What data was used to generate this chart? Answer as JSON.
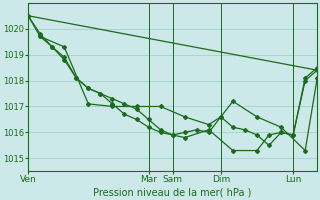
{
  "bg_color": "#cce8e8",
  "grid_color": "#99cccc",
  "line_color": "#1a6b1a",
  "xlabel": "Pression niveau de la mer( hPa )",
  "ylim": [
    1014.5,
    1021.0
  ],
  "yticks": [
    1015,
    1016,
    1017,
    1018,
    1019,
    1020
  ],
  "xtick_labels": [
    "Ven",
    "Mar",
    "Sam",
    "Dim",
    "Lun"
  ],
  "xtick_positions": [
    0,
    5,
    6,
    8,
    11
  ],
  "xlim": [
    0,
    12
  ],
  "series1_straight": {
    "x": [
      0,
      12
    ],
    "y": [
      1020.5,
      1018.4
    ]
  },
  "series2": {
    "x": [
      0,
      0.5,
      1.5,
      2.5,
      3.5,
      4.5,
      5.5,
      6.5,
      7.5,
      8.0,
      8.5,
      9.5,
      10.5,
      11.5,
      12
    ],
    "y": [
      1020.5,
      1019.7,
      1019.3,
      1017.1,
      1017.0,
      1017.0,
      1017.0,
      1016.6,
      1016.3,
      1016.6,
      1017.2,
      1016.6,
      1016.2,
      1015.3,
      1018.1
    ]
  },
  "series3": {
    "x": [
      0,
      0.5,
      1.0,
      1.5,
      2.0,
      2.5,
      3.0,
      3.5,
      4.0,
      4.5,
      5.0,
      5.5,
      6.0,
      6.5,
      7.0,
      7.5,
      8.0,
      8.5,
      9.0,
      9.5,
      10.0,
      10.5,
      11.0,
      11.5,
      12.0
    ],
    "y": [
      1020.5,
      1019.8,
      1019.3,
      1018.9,
      1018.1,
      1017.7,
      1017.5,
      1017.1,
      1016.7,
      1016.5,
      1016.2,
      1016.0,
      1015.9,
      1016.0,
      1016.1,
      1016.0,
      1016.6,
      1016.2,
      1016.1,
      1015.9,
      1015.5,
      1016.0,
      1015.9,
      1018.1,
      1018.5
    ]
  },
  "series4": {
    "x": [
      0.5,
      1.0,
      1.5,
      2.0,
      2.5,
      3.0,
      3.5,
      4.0,
      4.5,
      5.0,
      5.5,
      6.0,
      6.5,
      7.5,
      8.5,
      9.5,
      10.0,
      10.5,
      11.0,
      11.5,
      12.0
    ],
    "y": [
      1019.7,
      1019.3,
      1018.8,
      1018.1,
      1017.7,
      1017.5,
      1017.3,
      1017.1,
      1016.9,
      1016.5,
      1016.1,
      1015.9,
      1015.8,
      1016.1,
      1015.3,
      1015.3,
      1015.9,
      1016.0,
      1015.9,
      1018.0,
      1018.4
    ]
  }
}
